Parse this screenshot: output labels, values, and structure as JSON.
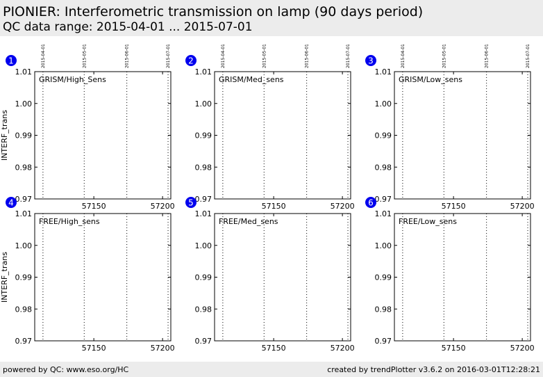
{
  "header": {
    "title": "PIONIER: Interferometric transmission on lamp (90 days period)",
    "subtitle": "QC data range: 2015-04-01 ... 2015-07-01"
  },
  "footer": {
    "left": "powered by QC: www.eso.org/HC",
    "right": "created by trendPlotter v3.6.2 on 2016-03-01T12:28:21"
  },
  "colors": {
    "badge": "#0000ee",
    "frame": "#000000",
    "header_bg": "#ececec"
  },
  "chart_data": [
    {
      "type": "scatter",
      "panel": "1",
      "label": "GRISM/High_Sens",
      "ylabel": "INTERF_trans",
      "xlim": [
        57107,
        57206
      ],
      "ylim": [
        0.97,
        1.01
      ],
      "xticks": [
        57150,
        57200
      ],
      "yticks": [
        0.97,
        0.98,
        0.99,
        1.0,
        1.01
      ],
      "ytick_labels": [
        "0.97",
        "0.98",
        "0.99",
        "1.00",
        "1.01"
      ],
      "date_markers": [
        {
          "x": 57113,
          "label": "2015-04-01"
        },
        {
          "x": 57143,
          "label": "2015-05-01"
        },
        {
          "x": 57174,
          "label": "2015-06-01"
        },
        {
          "x": 57204,
          "label": "2015-07-01"
        }
      ],
      "series": []
    },
    {
      "type": "scatter",
      "panel": "2",
      "label": "GRISM/Med_sens",
      "ylabel": "",
      "xlim": [
        57107,
        57206
      ],
      "ylim": [
        0.97,
        1.01
      ],
      "xticks": [
        57150,
        57200
      ],
      "yticks": [
        0.97,
        0.98,
        0.99,
        1.0,
        1.01
      ],
      "ytick_labels": [
        "0.97",
        "0.98",
        "0.99",
        "1.00",
        "1.01"
      ],
      "date_markers": [
        {
          "x": 57113,
          "label": "2015-04-01"
        },
        {
          "x": 57143,
          "label": "2015-05-01"
        },
        {
          "x": 57174,
          "label": "2015-06-01"
        },
        {
          "x": 57204,
          "label": "2015-07-01"
        }
      ],
      "series": []
    },
    {
      "type": "scatter",
      "panel": "3",
      "label": "GRISM/Low_sens",
      "ylabel": "",
      "xlim": [
        57107,
        57206
      ],
      "ylim": [
        0.97,
        1.01
      ],
      "xticks": [
        57150,
        57200
      ],
      "yticks": [
        0.97,
        0.98,
        0.99,
        1.0,
        1.01
      ],
      "ytick_labels": [
        "0.97",
        "0.98",
        "0.99",
        "1.00",
        "1.01"
      ],
      "date_markers": [
        {
          "x": 57113,
          "label": "2015-04-01"
        },
        {
          "x": 57143,
          "label": "2015-05-01"
        },
        {
          "x": 57174,
          "label": "2015-06-01"
        },
        {
          "x": 57204,
          "label": "2015-07-01"
        }
      ],
      "series": []
    },
    {
      "type": "scatter",
      "panel": "4",
      "label": "FREE/High_sens",
      "ylabel": "INTERF_trans",
      "xlim": [
        57107,
        57206
      ],
      "ylim": [
        0.97,
        1.01
      ],
      "xticks": [
        57150,
        57200
      ],
      "yticks": [
        0.97,
        0.98,
        0.99,
        1.0,
        1.01
      ],
      "ytick_labels": [
        "0.97",
        "0.98",
        "0.99",
        "1.00",
        "1.01"
      ],
      "date_markers": [
        {
          "x": 57113,
          "label": ""
        },
        {
          "x": 57143,
          "label": ""
        },
        {
          "x": 57174,
          "label": ""
        },
        {
          "x": 57204,
          "label": ""
        }
      ],
      "series": []
    },
    {
      "type": "scatter",
      "panel": "5",
      "label": "FREE/Med_sens",
      "ylabel": "",
      "xlim": [
        57107,
        57206
      ],
      "ylim": [
        0.97,
        1.01
      ],
      "xticks": [
        57150,
        57200
      ],
      "yticks": [
        0.97,
        0.98,
        0.99,
        1.0,
        1.01
      ],
      "ytick_labels": [
        "0.97",
        "0.98",
        "0.99",
        "1.00",
        "1.01"
      ],
      "date_markers": [
        {
          "x": 57113,
          "label": ""
        },
        {
          "x": 57143,
          "label": ""
        },
        {
          "x": 57174,
          "label": ""
        },
        {
          "x": 57204,
          "label": ""
        }
      ],
      "series": []
    },
    {
      "type": "scatter",
      "panel": "6",
      "label": "FREE/Low_sens",
      "ylabel": "",
      "xlim": [
        57107,
        57206
      ],
      "ylim": [
        0.97,
        1.01
      ],
      "xticks": [
        57150,
        57200
      ],
      "yticks": [
        0.97,
        0.98,
        0.99,
        1.0,
        1.01
      ],
      "ytick_labels": [
        "0.97",
        "0.98",
        "0.99",
        "1.00",
        "1.01"
      ],
      "date_markers": [
        {
          "x": 57113,
          "label": ""
        },
        {
          "x": 57143,
          "label": ""
        },
        {
          "x": 57174,
          "label": ""
        },
        {
          "x": 57204,
          "label": ""
        }
      ],
      "series": []
    }
  ]
}
